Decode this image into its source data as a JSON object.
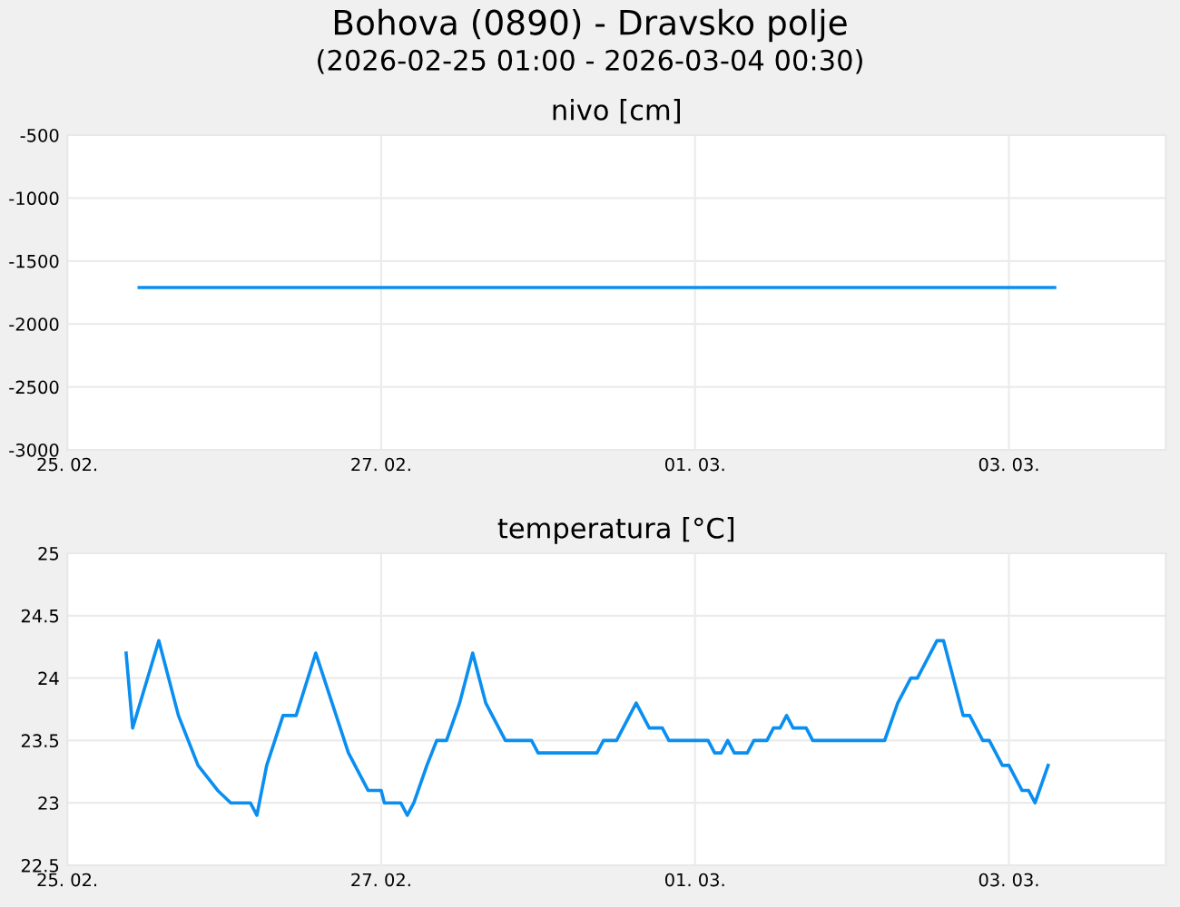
{
  "chart_data": [
    {
      "type": "line",
      "title": "Bohova (0890) - Dravsko polje",
      "subtitle": "(2026-02-25 01:00 - 2026-03-04 00:30)",
      "xlabel": "nivo [cm]",
      "series": [
        {
          "color": "#0a8ff0",
          "x": [
            "2026-02-25T11:00",
            "2026-03-03T07:00"
          ],
          "values": [
            -1710,
            -1710
          ]
        }
      ],
      "xlim": [
        "2026-02-25",
        "2026-03-04"
      ],
      "xticks": [
        {
          "value": "2026-02-25",
          "label": "25. 02."
        },
        {
          "value": "2026-02-27",
          "label": "27. 02."
        },
        {
          "value": "2026-03-01",
          "label": "01. 03."
        },
        {
          "value": "2026-03-03",
          "label": "03. 03."
        }
      ],
      "ylim": [
        -3000,
        -500
      ],
      "yticks": [
        -3000,
        -2500,
        -2000,
        -1500,
        -1000,
        -500
      ],
      "grid": true,
      "legend": false
    },
    {
      "type": "line",
      "xlabel": "temperatura [°C]",
      "series": [
        {
          "color": "#0a8ff0",
          "x": [
            "2026-02-25T09:00",
            "2026-02-25T10:00",
            "2026-02-25T14:00",
            "2026-02-25T17:00",
            "2026-02-25T20:00",
            "2026-02-25T23:00",
            "2026-02-26T01:00",
            "2026-02-26T04:00",
            "2026-02-26T05:00",
            "2026-02-26T06:30",
            "2026-02-26T09:00",
            "2026-02-26T11:00",
            "2026-02-26T14:00",
            "2026-02-26T19:00",
            "2026-02-26T22:00",
            "2026-02-27T00:00",
            "2026-02-27T00:30",
            "2026-02-27T03:00",
            "2026-02-27T04:00",
            "2026-02-27T05:00",
            "2026-02-27T07:00",
            "2026-02-27T08:30",
            "2026-02-27T10:00",
            "2026-02-27T12:00",
            "2026-02-27T14:00",
            "2026-02-27T16:00",
            "2026-02-27T19:00",
            "2026-02-27T23:00",
            "2026-02-28T00:00",
            "2026-02-28T09:00",
            "2026-02-28T10:00",
            "2026-02-28T12:00",
            "2026-02-28T15:00",
            "2026-02-28T17:00",
            "2026-02-28T19:00",
            "2026-02-28T20:00",
            "2026-03-01T02:00",
            "2026-03-01T03:00",
            "2026-03-01T04:00",
            "2026-03-01T05:00",
            "2026-03-01T06:00",
            "2026-03-01T08:00",
            "2026-03-01T09:00",
            "2026-03-01T11:00",
            "2026-03-01T12:00",
            "2026-03-01T13:00",
            "2026-03-01T14:00",
            "2026-03-01T15:00",
            "2026-03-01T17:00",
            "2026-03-01T18:00",
            "2026-03-02T05:00",
            "2026-03-02T07:00",
            "2026-03-02T09:00",
            "2026-03-02T10:00",
            "2026-03-02T13:00",
            "2026-03-02T14:00",
            "2026-03-02T15:30",
            "2026-03-02T17:00",
            "2026-03-02T18:00",
            "2026-03-02T20:00",
            "2026-03-02T21:00",
            "2026-03-02T23:00",
            "2026-03-03T00:00",
            "2026-03-03T02:00",
            "2026-03-03T03:00",
            "2026-03-03T04:00",
            "2026-03-03T06:00"
          ],
          "values": [
            24.2,
            23.6,
            24.3,
            23.7,
            23.3,
            23.1,
            23.0,
            23.0,
            22.9,
            23.3,
            23.7,
            23.7,
            24.2,
            23.4,
            23.1,
            23.1,
            23.0,
            23.0,
            22.9,
            23.0,
            23.3,
            23.5,
            23.5,
            23.8,
            24.2,
            23.8,
            23.5,
            23.5,
            23.4,
            23.4,
            23.5,
            23.5,
            23.8,
            23.6,
            23.6,
            23.5,
            23.5,
            23.4,
            23.4,
            23.5,
            23.4,
            23.4,
            23.5,
            23.5,
            23.6,
            23.6,
            23.7,
            23.6,
            23.6,
            23.5,
            23.5,
            23.8,
            24.0,
            24.0,
            24.3,
            24.3,
            24.0,
            23.7,
            23.7,
            23.5,
            23.5,
            23.3,
            23.3,
            23.1,
            23.1,
            23.0,
            23.3
          ]
        }
      ],
      "xlim": [
        "2026-02-25",
        "2026-03-04"
      ],
      "xticks": [
        {
          "value": "2026-02-25",
          "label": "25. 02."
        },
        {
          "value": "2026-02-27",
          "label": "27. 02."
        },
        {
          "value": "2026-03-01",
          "label": "01. 03."
        },
        {
          "value": "2026-03-03",
          "label": "03. 03."
        }
      ],
      "ylim": [
        22.5,
        25
      ],
      "yticks": [
        22.5,
        23,
        23.5,
        24,
        24.5,
        25
      ],
      "grid": true,
      "legend": false
    }
  ]
}
